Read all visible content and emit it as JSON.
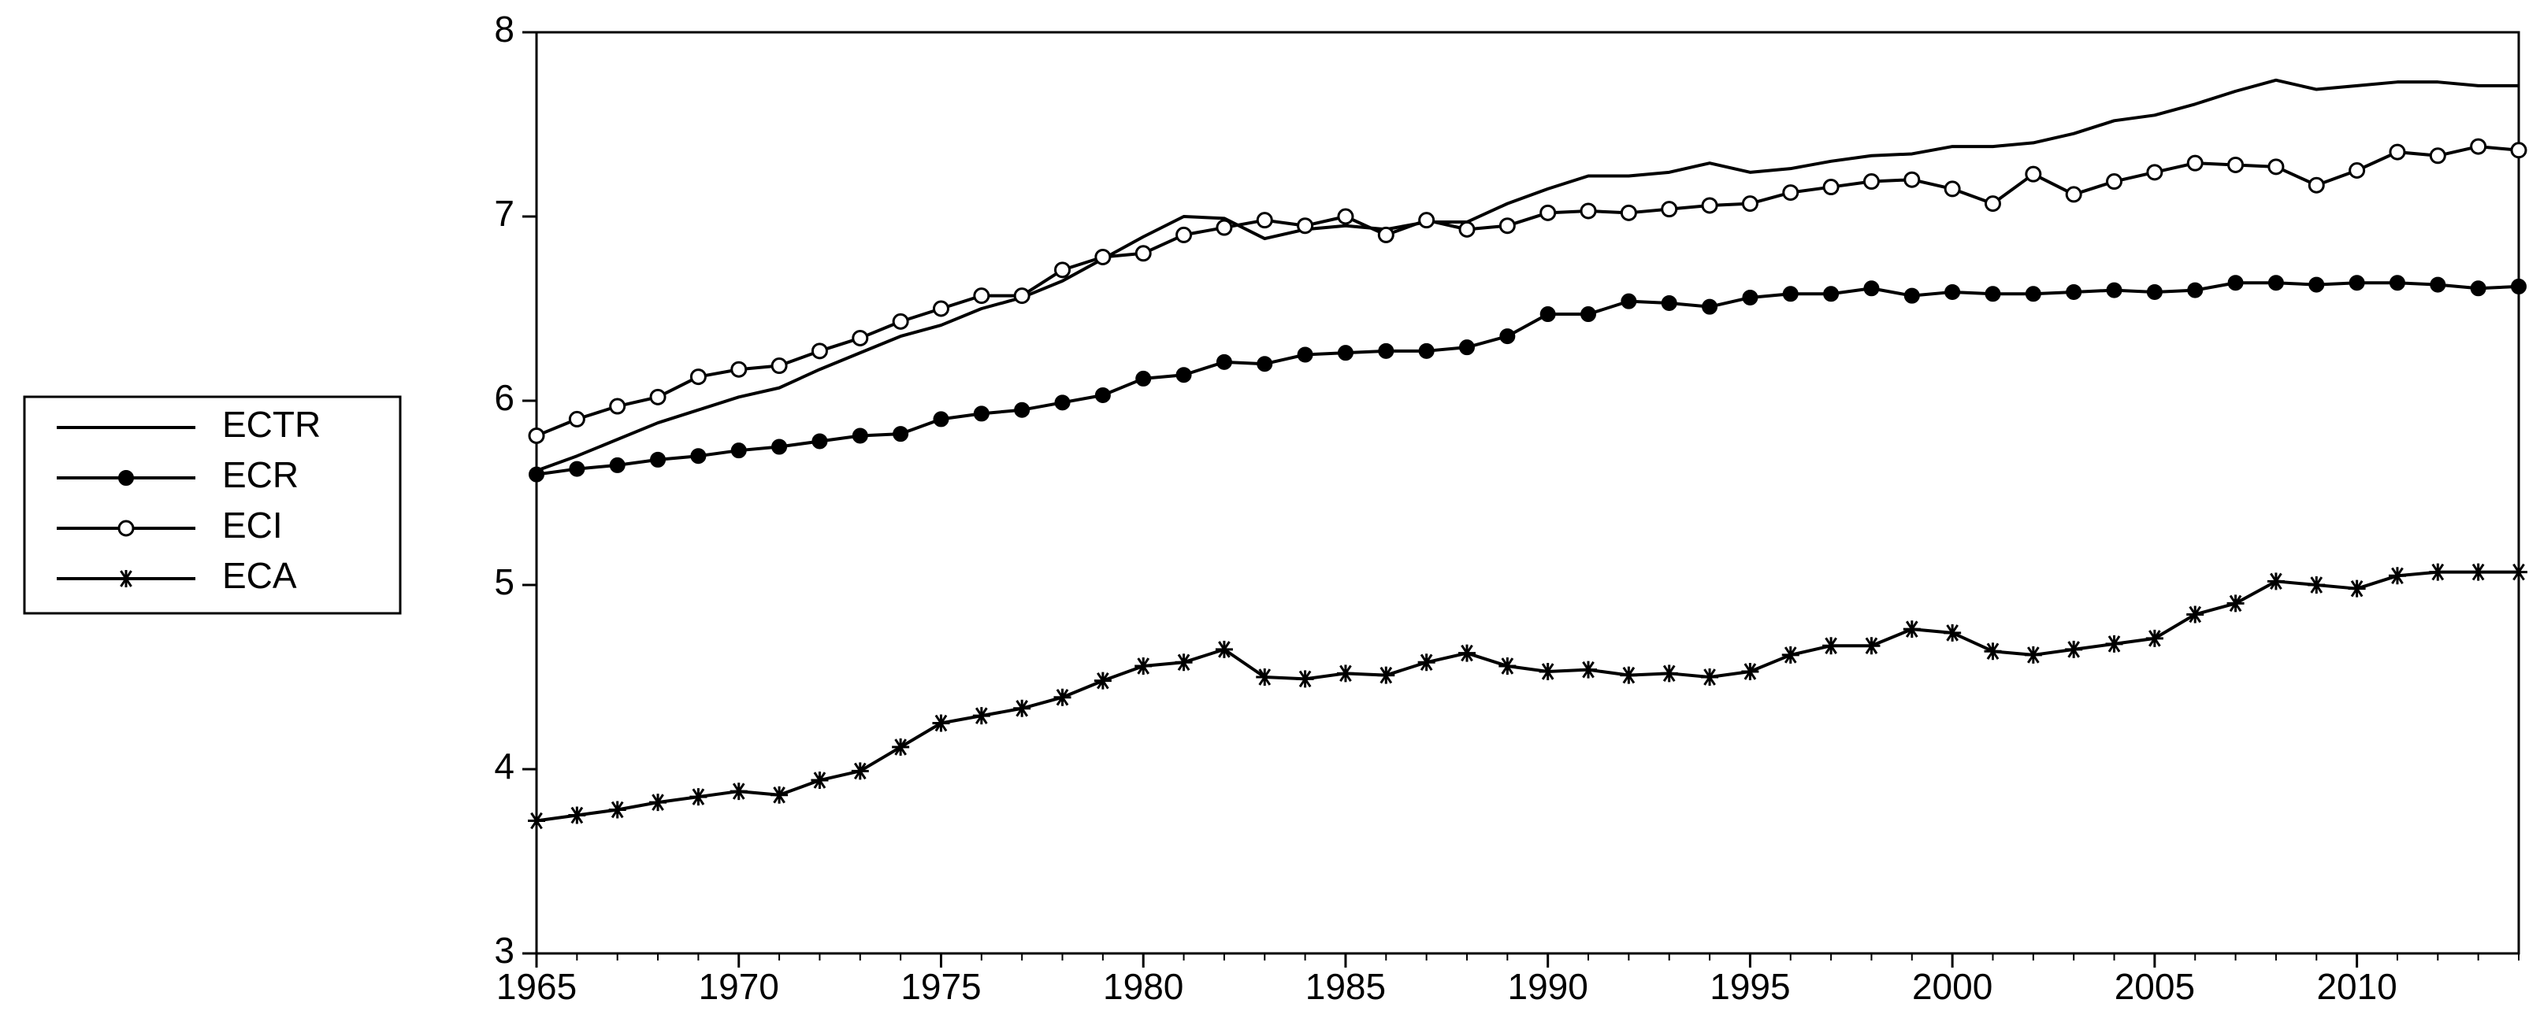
{
  "chart_data": {
    "type": "line",
    "x": [
      1965,
      1966,
      1967,
      1968,
      1969,
      1970,
      1971,
      1972,
      1973,
      1974,
      1975,
      1976,
      1977,
      1978,
      1979,
      1980,
      1981,
      1982,
      1983,
      1984,
      1985,
      1986,
      1987,
      1988,
      1989,
      1990,
      1991,
      1992,
      1993,
      1994,
      1995,
      1996,
      1997,
      1998,
      1999,
      2000,
      2001,
      2002,
      2003,
      2004,
      2005,
      2006,
      2007,
      2008,
      2009,
      2010,
      2011,
      2012,
      2013,
      2014
    ],
    "series": [
      {
        "name": "ECTR",
        "color": "#000000",
        "marker": "none",
        "values": [
          5.62,
          5.7,
          5.79,
          5.88,
          5.95,
          6.02,
          6.07,
          6.17,
          6.26,
          6.35,
          6.41,
          6.5,
          6.56,
          6.65,
          6.77,
          6.89,
          7.0,
          6.99,
          6.88,
          6.93,
          6.95,
          6.93,
          6.97,
          6.97,
          7.07,
          7.15,
          7.22,
          7.22,
          7.24,
          7.29,
          7.24,
          7.26,
          7.3,
          7.33,
          7.34,
          7.38,
          7.38,
          7.4,
          7.45,
          7.52,
          7.55,
          7.61,
          7.68,
          7.74,
          7.69,
          7.71,
          7.73,
          7.73,
          7.71,
          7.71
        ]
      },
      {
        "name": "ECR",
        "color": "#000000",
        "marker": "filled-circle",
        "values": [
          5.6,
          5.63,
          5.65,
          5.68,
          5.7,
          5.73,
          5.75,
          5.78,
          5.81,
          5.82,
          5.9,
          5.93,
          5.95,
          5.99,
          6.03,
          6.12,
          6.14,
          6.21,
          6.2,
          6.25,
          6.26,
          6.27,
          6.27,
          6.29,
          6.35,
          6.47,
          6.47,
          6.54,
          6.53,
          6.51,
          6.56,
          6.58,
          6.58,
          6.61,
          6.57,
          6.59,
          6.58,
          6.58,
          6.59,
          6.6,
          6.59,
          6.6,
          6.64,
          6.64,
          6.63,
          6.64,
          6.64,
          6.63,
          6.61,
          6.62
        ]
      },
      {
        "name": "ECI",
        "color": "#000000",
        "marker": "open-circle",
        "values": [
          5.81,
          5.9,
          5.97,
          6.02,
          6.13,
          6.17,
          6.19,
          6.27,
          6.34,
          6.43,
          6.5,
          6.57,
          6.57,
          6.71,
          6.78,
          6.8,
          6.9,
          6.94,
          6.98,
          6.95,
          7.0,
          6.9,
          6.98,
          6.93,
          6.95,
          7.02,
          7.03,
          7.02,
          7.04,
          7.06,
          7.07,
          7.13,
          7.16,
          7.19,
          7.2,
          7.15,
          7.07,
          7.23,
          7.12,
          7.19,
          7.24,
          7.29,
          7.28,
          7.27,
          7.17,
          7.25,
          7.35,
          7.33,
          7.38,
          7.36
        ]
      },
      {
        "name": "ECA",
        "color": "#000000",
        "marker": "asterisk",
        "values": [
          3.72,
          3.75,
          3.78,
          3.82,
          3.85,
          3.88,
          3.86,
          3.94,
          3.99,
          4.12,
          4.25,
          4.29,
          4.33,
          4.39,
          4.48,
          4.56,
          4.58,
          4.65,
          4.5,
          4.49,
          4.52,
          4.51,
          4.58,
          4.63,
          4.56,
          4.53,
          4.54,
          4.51,
          4.52,
          4.5,
          4.53,
          4.62,
          4.67,
          4.67,
          4.76,
          4.74,
          4.64,
          4.62,
          4.65,
          4.68,
          4.71,
          4.84,
          4.9,
          5.02,
          5.0,
          4.98,
          5.05,
          5.07,
          5.07,
          5.07
        ]
      }
    ],
    "xlim": [
      1965,
      2014
    ],
    "xticks": [
      1965,
      1970,
      1975,
      1980,
      1985,
      1990,
      1995,
      2000,
      2005,
      2010
    ],
    "ylim": [
      3,
      8
    ],
    "yticks": [
      3,
      4,
      5,
      6,
      7,
      8
    ],
    "grid": false,
    "legend": "left"
  }
}
